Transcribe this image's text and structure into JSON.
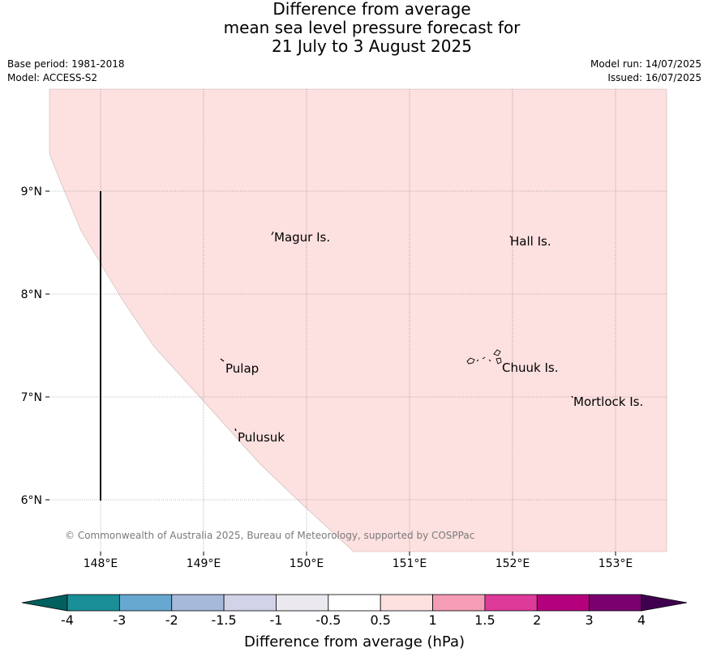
{
  "header": {
    "title_lines": [
      "Difference from average",
      "mean sea level pressure forecast for",
      "21 July to 3 August 2025"
    ],
    "base_period": "Base period: 1981-2018",
    "model": "Model: ACCESS-S2",
    "model_run": "Model run: 14/07/2025",
    "issued": "Issued: 16/07/2025"
  },
  "map": {
    "lat_labels": [
      "9°N",
      "8°N",
      "7°N",
      "6°N"
    ],
    "lon_labels": [
      "148°E",
      "149°E",
      "150°E",
      "151°E",
      "152°E",
      "153°E"
    ],
    "places": {
      "magur": "Magur Is.",
      "hall": "Hall Is.",
      "pulap": "Pulap",
      "chuuk": "Chuuk Is.",
      "mortlock": "Mortlock Is.",
      "pulusuk": "Pulusuk"
    },
    "shaded_category": "0.5 to 1",
    "shaded_color": "#fde0e0",
    "credit": "© Commonwealth of Australia 2025, Bureau of Meteorology, supported by COSPPac"
  },
  "colorbar": {
    "title": "Difference from average (hPa)",
    "tick_labels": [
      "-4",
      "-3",
      "-2",
      "-1.5",
      "-1",
      "-0.5",
      "0.5",
      "1",
      "1.5",
      "2",
      "3",
      "4"
    ],
    "colors": [
      "#005f5f",
      "#1a8f97",
      "#66a8d0",
      "#a7b9db",
      "#d2d3e9",
      "#ebe9ef",
      "#ffffff",
      "#fde0e0",
      "#f59cb6",
      "#de3a9a",
      "#b4007d",
      "#7a0070",
      "#400050"
    ]
  }
}
